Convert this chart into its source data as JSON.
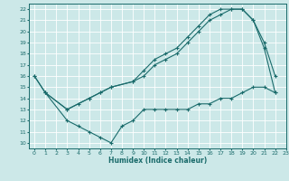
{
  "xlabel": "Humidex (Indice chaleur)",
  "bg_color": "#cce8e8",
  "line_color": "#1a6b6b",
  "grid_color": "#ffffff",
  "xlim": [
    -0.5,
    23
  ],
  "ylim": [
    9.5,
    22.5
  ],
  "xticks": [
    0,
    1,
    2,
    3,
    4,
    5,
    6,
    7,
    8,
    9,
    10,
    11,
    12,
    13,
    14,
    15,
    16,
    17,
    18,
    19,
    20,
    21,
    22,
    23
  ],
  "yticks": [
    10,
    11,
    12,
    13,
    14,
    15,
    16,
    17,
    18,
    19,
    20,
    21,
    22
  ],
  "line1_x": [
    0,
    1,
    3,
    5,
    6,
    7,
    9,
    10,
    11,
    12,
    13,
    14,
    15,
    16,
    17,
    18,
    19,
    20,
    21,
    22
  ],
  "line1_y": [
    16,
    14.5,
    13,
    14,
    14.5,
    15,
    15.5,
    16,
    17,
    17.5,
    18,
    19,
    20,
    21,
    21.5,
    22,
    22,
    21,
    18.5,
    14.5
  ],
  "line2_x": [
    0,
    1,
    3,
    4,
    5,
    6,
    7,
    9,
    10,
    11,
    12,
    13,
    14,
    15,
    16,
    17,
    18,
    19,
    20,
    21,
    22
  ],
  "line2_y": [
    16,
    14.5,
    13,
    13.5,
    14,
    14.5,
    15,
    15.5,
    16.5,
    17.5,
    18,
    18.5,
    19.5,
    20.5,
    21.5,
    22,
    22,
    22,
    21,
    19,
    16
  ],
  "line3_x": [
    1,
    3,
    4,
    5,
    6,
    7,
    8,
    9,
    10,
    11,
    12,
    13,
    14,
    15,
    16,
    17,
    18,
    19,
    20,
    21,
    22
  ],
  "line3_y": [
    14.5,
    12,
    11.5,
    11,
    10.5,
    10,
    11.5,
    12,
    13,
    13,
    13,
    13,
    13,
    13.5,
    13.5,
    14,
    14,
    14.5,
    15,
    15,
    14.5
  ]
}
